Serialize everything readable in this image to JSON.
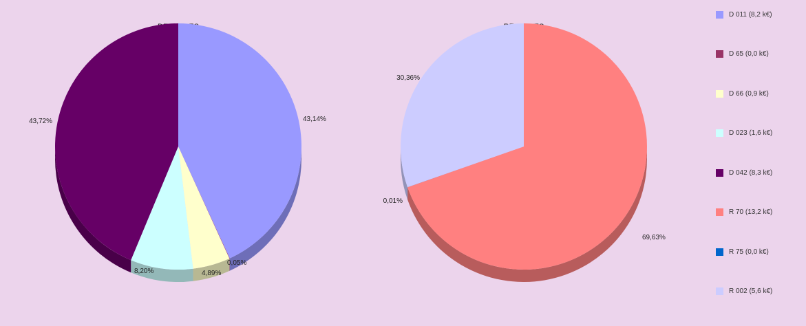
{
  "chart_data": [
    {
      "type": "pie",
      "title": "DEPENSES",
      "slices": [
        {
          "label": "D 011 (8,2 k€)",
          "value": 43.14,
          "display": "43,14%",
          "color": "#9999ff"
        },
        {
          "label": "D 65 (0,0 k€)",
          "value": 0.05,
          "display": "0,05%",
          "color": "#993366"
        },
        {
          "label": "D 66 (0,9 k€)",
          "value": 4.89,
          "display": "4,89%",
          "color": "#ffffcc"
        },
        {
          "label": "D 023 (1,6 k€)",
          "value": 8.2,
          "display": "8,20%",
          "color": "#ccffff"
        },
        {
          "label": "D 042 (8,3 k€)",
          "value": 43.72,
          "display": "43,72%",
          "color": "#660066"
        }
      ]
    },
    {
      "type": "pie",
      "title": "RECETTES",
      "slices": [
        {
          "label": "R 70 (13,2 k€)",
          "value": 69.63,
          "display": "69,63%",
          "color": "#ff8080"
        },
        {
          "label": "R 75 (0,0 k€)",
          "value": 0.01,
          "display": "0,01%",
          "color": "#0066cc"
        },
        {
          "label": "R 002 (5,6 k€)",
          "value": 30.36,
          "display": "30,36%",
          "color": "#ccccff"
        }
      ]
    }
  ],
  "legend": [
    {
      "label": "D 011 (8,2 k€)",
      "color": "#9999ff"
    },
    {
      "label": "D 65 (0,0 k€)",
      "color": "#993366"
    },
    {
      "label": "D 66 (0,9 k€)",
      "color": "#ffffcc"
    },
    {
      "label": "D 023 (1,6 k€)",
      "color": "#ccffff"
    },
    {
      "label": "D 042 (8,3 k€)",
      "color": "#660066"
    },
    {
      "label": "R 70 (13,2 k€)",
      "color": "#ff8080"
    },
    {
      "label": "R 75 (0,0 k€)",
      "color": "#0066cc"
    },
    {
      "label": "R 002 (5,6 k€)",
      "color": "#ccccff"
    }
  ]
}
